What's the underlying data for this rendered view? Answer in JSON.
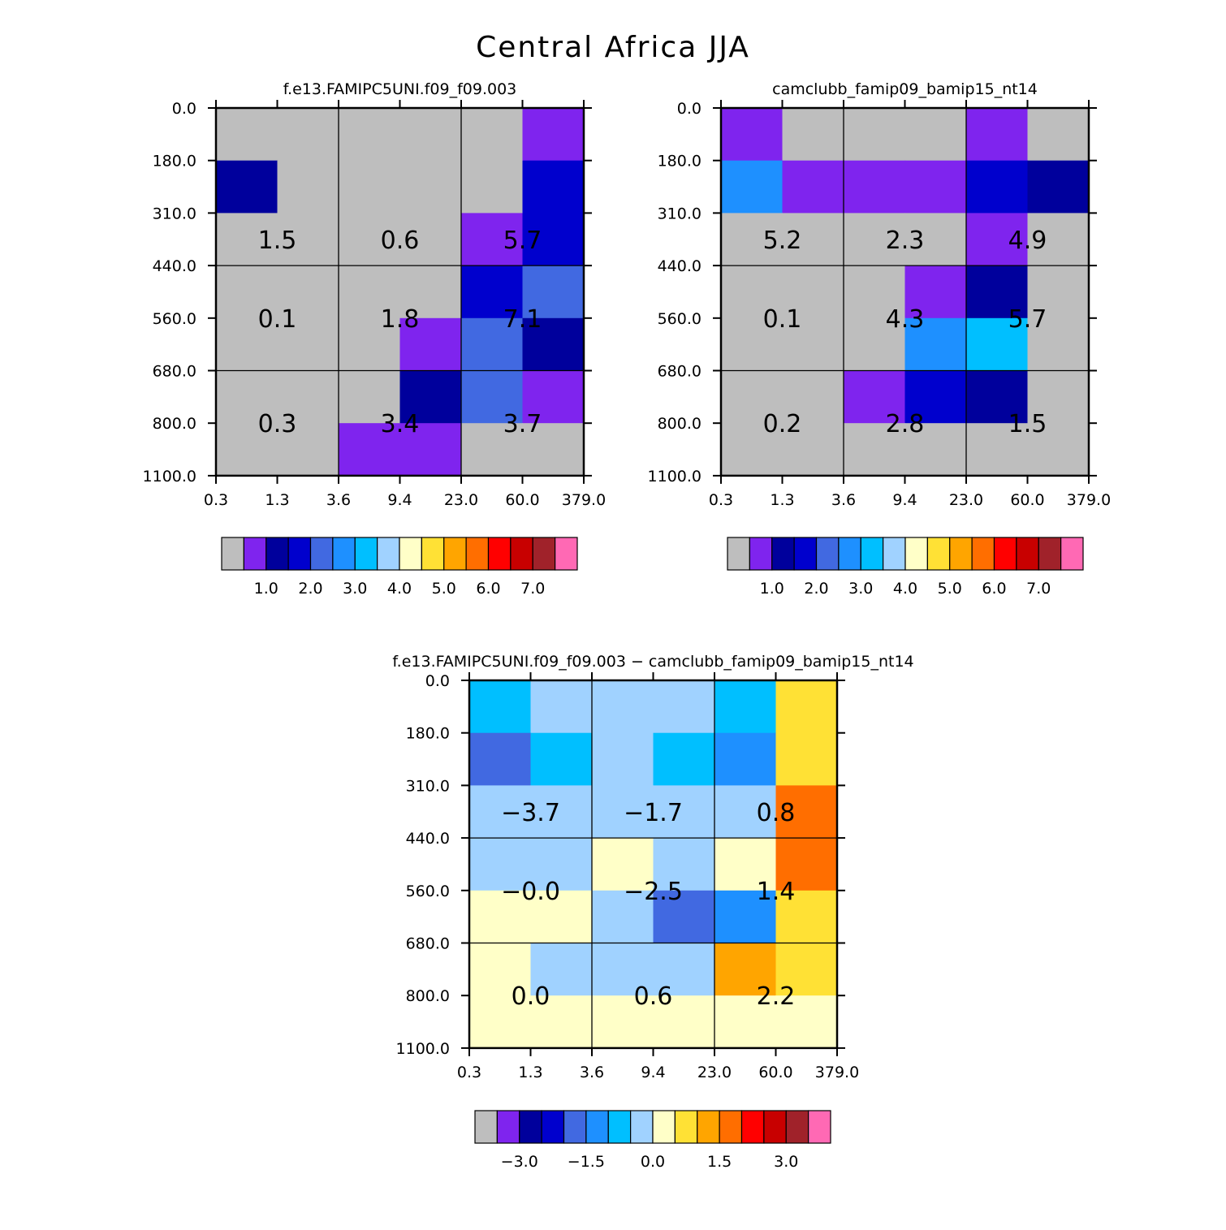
{
  "title": "Central Africa JJA",
  "chart_data": [
    {
      "type": "heatmap",
      "title": "f.e13.FAMIPC5UNI.f09_f09.003",
      "x_tick_labels": [
        "0.3",
        "1.3",
        "3.6",
        "9.4",
        "23.0",
        "60.0",
        "379.0"
      ],
      "y_tick_labels": [
        "0.0",
        "180.0",
        "310.0",
        "440.0",
        "560.0",
        "680.0",
        "800.0",
        "1100.0"
      ],
      "cell_colors": [
        [
          "#BEBEBE",
          "#BEBEBE",
          "#BEBEBE",
          "#BEBEBE",
          "#BEBEBE",
          "#7F24EE"
        ],
        [
          "#00009C",
          "#BEBEBE",
          "#BEBEBE",
          "#BEBEBE",
          "#BEBEBE",
          "#0000CD"
        ],
        [
          "#BEBEBE",
          "#BEBEBE",
          "#BEBEBE",
          "#BEBEBE",
          "#7F24EE",
          "#0000CD"
        ],
        [
          "#BEBEBE",
          "#BEBEBE",
          "#BEBEBE",
          "#BEBEBE",
          "#0000CD",
          "#4169E1"
        ],
        [
          "#BEBEBE",
          "#BEBEBE",
          "#BEBEBE",
          "#7F24EE",
          "#4169E1",
          "#00009C"
        ],
        [
          "#BEBEBE",
          "#BEBEBE",
          "#BEBEBE",
          "#00009C",
          "#4169E1",
          "#7F24EE"
        ],
        [
          "#BEBEBE",
          "#BEBEBE",
          "#7F24EE",
          "#7F24EE",
          "#BEBEBE",
          "#BEBEBE"
        ]
      ],
      "box_values": [
        [
          "1.5",
          "0.6",
          "5.7"
        ],
        [
          "0.1",
          "1.8",
          "7.1"
        ],
        [
          "0.3",
          "3.4",
          "3.7"
        ]
      ],
      "colorbar": {
        "colors": [
          "#BEBEBE",
          "#7F24EE",
          "#00009C",
          "#0000CD",
          "#4169E1",
          "#1E90FF",
          "#00BFFF",
          "#A0D2FF",
          "#FFFFC8",
          "#FFE135",
          "#FFA500",
          "#FF6E00",
          "#FF0000",
          "#C80000",
          "#A0222A",
          "#FF69B4"
        ],
        "labels": [
          "1.0",
          "2.0",
          "3.0",
          "4.0",
          "5.0",
          "6.0",
          "7.0"
        ]
      }
    },
    {
      "type": "heatmap",
      "title": "camclubb_famip09_bamip15_nt14",
      "x_tick_labels": [
        "0.3",
        "1.3",
        "3.6",
        "9.4",
        "23.0",
        "60.0",
        "379.0"
      ],
      "y_tick_labels": [
        "0.0",
        "180.0",
        "310.0",
        "440.0",
        "560.0",
        "680.0",
        "800.0",
        "1100.0"
      ],
      "cell_colors": [
        [
          "#7F24EE",
          "#BEBEBE",
          "#BEBEBE",
          "#BEBEBE",
          "#7F24EE",
          "#BEBEBE"
        ],
        [
          "#1E90FF",
          "#7F24EE",
          "#7F24EE",
          "#7F24EE",
          "#0000CD",
          "#00009C"
        ],
        [
          "#BEBEBE",
          "#BEBEBE",
          "#BEBEBE",
          "#BEBEBE",
          "#7F24EE",
          "#BEBEBE"
        ],
        [
          "#BEBEBE",
          "#BEBEBE",
          "#BEBEBE",
          "#7F24EE",
          "#00009C",
          "#BEBEBE"
        ],
        [
          "#BEBEBE",
          "#BEBEBE",
          "#BEBEBE",
          "#1E90FF",
          "#00BFFF",
          "#BEBEBE"
        ],
        [
          "#BEBEBE",
          "#BEBEBE",
          "#7F24EE",
          "#0000CD",
          "#00009C",
          "#BEBEBE"
        ],
        [
          "#BEBEBE",
          "#BEBEBE",
          "#BEBEBE",
          "#BEBEBE",
          "#BEBEBE",
          "#BEBEBE"
        ]
      ],
      "box_values": [
        [
          "5.2",
          "2.3",
          "4.9"
        ],
        [
          "0.1",
          "4.3",
          "5.7"
        ],
        [
          "0.2",
          "2.8",
          "1.5"
        ]
      ],
      "colorbar": {
        "colors": [
          "#BEBEBE",
          "#7F24EE",
          "#00009C",
          "#0000CD",
          "#4169E1",
          "#1E90FF",
          "#00BFFF",
          "#A0D2FF",
          "#FFFFC8",
          "#FFE135",
          "#FFA500",
          "#FF6E00",
          "#FF0000",
          "#C80000",
          "#A0222A",
          "#FF69B4"
        ],
        "labels": [
          "1.0",
          "2.0",
          "3.0",
          "4.0",
          "5.0",
          "6.0",
          "7.0"
        ]
      }
    },
    {
      "type": "heatmap",
      "title": "f.e13.FAMIPC5UNI.f09_f09.003 − camclubb_famip09_bamip15_nt14",
      "x_tick_labels": [
        "0.3",
        "1.3",
        "3.6",
        "9.4",
        "23.0",
        "60.0",
        "379.0"
      ],
      "y_tick_labels": [
        "0.0",
        "180.0",
        "310.0",
        "440.0",
        "560.0",
        "680.0",
        "800.0",
        "1100.0"
      ],
      "cell_colors": [
        [
          "#00BFFF",
          "#A0D2FF",
          "#A0D2FF",
          "#A0D2FF",
          "#00BFFF",
          "#FFE135"
        ],
        [
          "#4169E1",
          "#00BFFF",
          "#A0D2FF",
          "#00BFFF",
          "#1E90FF",
          "#FFE135"
        ],
        [
          "#A0D2FF",
          "#A0D2FF",
          "#A0D2FF",
          "#A0D2FF",
          "#A0D2FF",
          "#FF6E00"
        ],
        [
          "#A0D2FF",
          "#A0D2FF",
          "#FFFFC8",
          "#A0D2FF",
          "#FFFFC8",
          "#FF6E00"
        ],
        [
          "#FFFFC8",
          "#FFFFC8",
          "#A0D2FF",
          "#4169E1",
          "#1E90FF",
          "#FFE135"
        ],
        [
          "#FFFFC8",
          "#A0D2FF",
          "#A0D2FF",
          "#A0D2FF",
          "#FFA500",
          "#FFE135"
        ],
        [
          "#FFFFC8",
          "#FFFFC8",
          "#FFFFC8",
          "#FFFFC8",
          "#FFFFC8",
          "#FFFFC8"
        ]
      ],
      "box_values": [
        [
          "−3.7",
          "−1.7",
          "0.8"
        ],
        [
          "−0.0",
          "−2.5",
          "1.4"
        ],
        [
          "0.0",
          "0.6",
          "2.2"
        ]
      ],
      "colorbar": {
        "colors": [
          "#BEBEBE",
          "#7F24EE",
          "#00009C",
          "#0000CD",
          "#4169E1",
          "#1E90FF",
          "#00BFFF",
          "#A0D2FF",
          "#FFFFC8",
          "#FFE135",
          "#FFA500",
          "#FF6E00",
          "#FF0000",
          "#C80000",
          "#A0222A",
          "#FF69B4"
        ],
        "labels": [
          "−3.0",
          "−1.5",
          "0.0",
          "1.5",
          "3.0"
        ]
      }
    }
  ]
}
